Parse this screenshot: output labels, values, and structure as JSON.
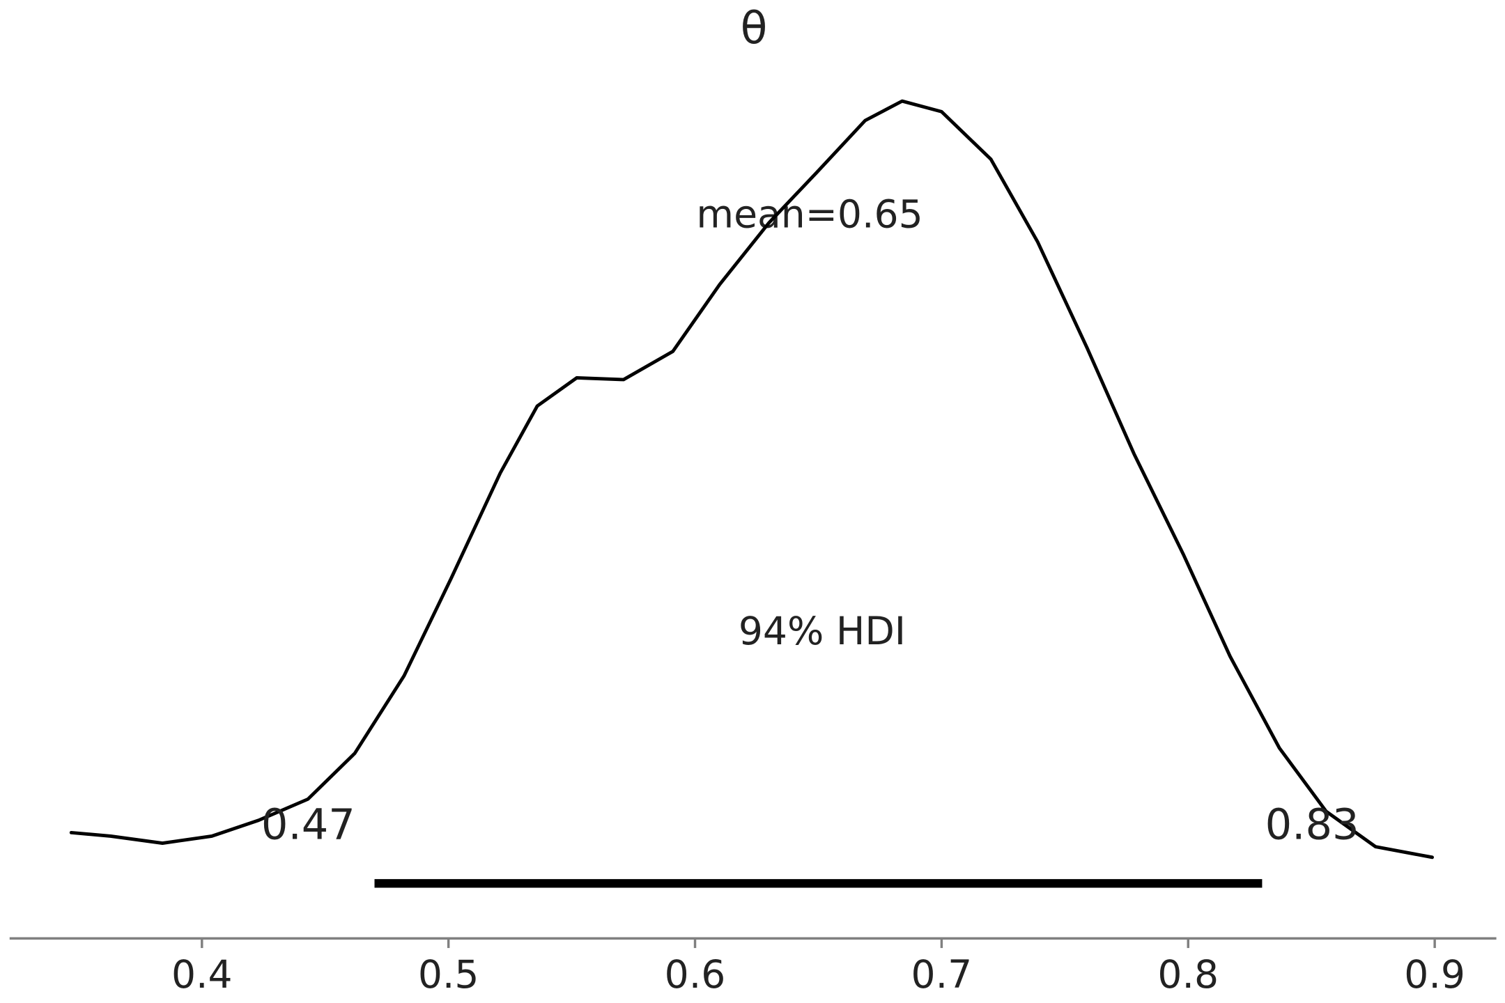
{
  "chart_data": {
    "type": "line",
    "title": "θ",
    "x": [
      0.347,
      0.363,
      0.384,
      0.404,
      0.423,
      0.443,
      0.462,
      0.482,
      0.501,
      0.521,
      0.536,
      0.552,
      0.571,
      0.591,
      0.61,
      0.63,
      0.649,
      0.669,
      0.684,
      0.7,
      0.72,
      0.739,
      0.759,
      0.778,
      0.798,
      0.817,
      0.837,
      0.856,
      0.876,
      0.899
    ],
    "values": [
      0.15,
      0.13,
      0.09,
      0.13,
      0.22,
      0.34,
      0.6,
      1.04,
      1.59,
      2.19,
      2.57,
      2.73,
      2.72,
      2.88,
      3.26,
      3.61,
      3.89,
      4.19,
      4.3,
      4.24,
      3.97,
      3.5,
      2.9,
      2.3,
      1.73,
      1.15,
      0.63,
      0.27,
      0.07,
      0.01
    ],
    "color": "#000000",
    "mean_label": "mean=0.65",
    "hdi_label": "94% HDI",
    "hdi": [
      0.47,
      0.83
    ],
    "xlim": [
      0.322,
      0.925
    ],
    "ylim": [
      -0.45,
      4.6
    ],
    "xticks": [
      0.4,
      0.5,
      0.6,
      0.7,
      0.8,
      0.9
    ]
  }
}
